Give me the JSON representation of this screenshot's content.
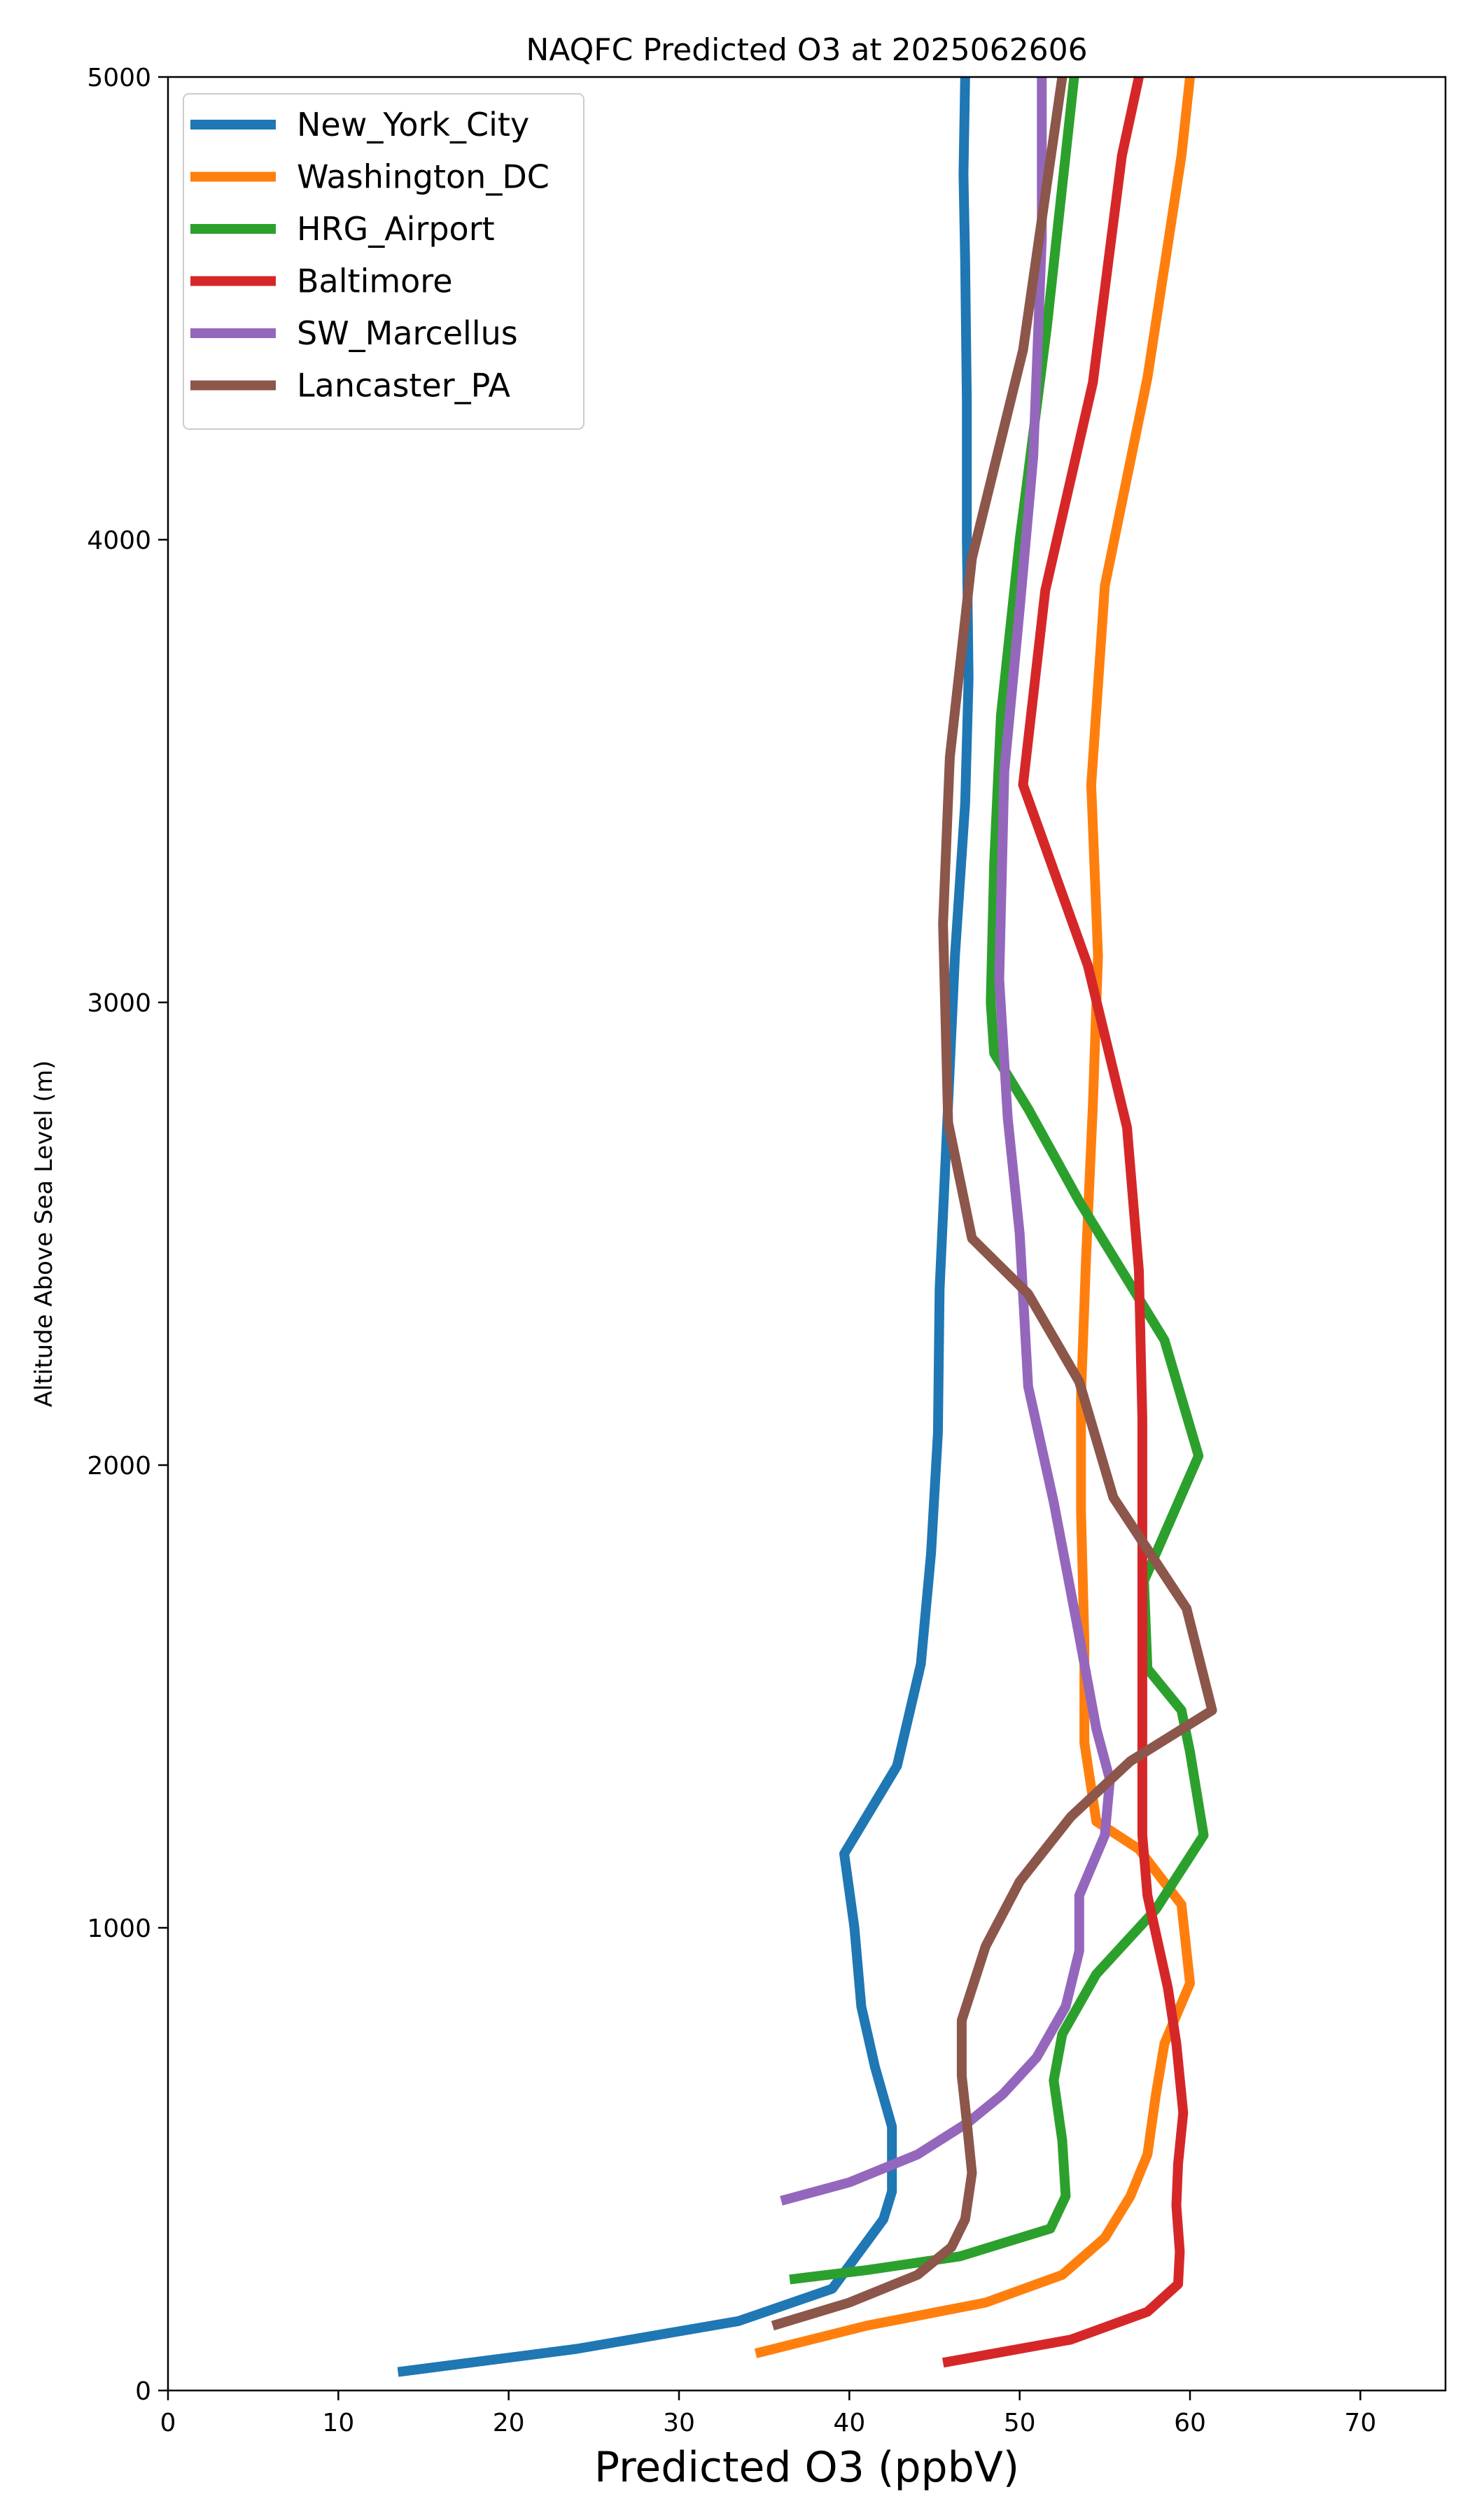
{
  "chart_data": {
    "type": "line",
    "title": "NAQFC Predicted O3 at 2025062606",
    "xlabel": "Predicted O3 (ppbV)",
    "ylabel": "Altitude Above Sea Level (m)",
    "xlim": [
      0,
      75
    ],
    "ylim": [
      0,
      5000
    ],
    "xticks": [
      0,
      10,
      20,
      30,
      40,
      50,
      60,
      70
    ],
    "yticks": [
      0,
      1000,
      2000,
      3000,
      4000,
      5000
    ],
    "grid": false,
    "legend_position": "top-left",
    "series": [
      {
        "name": "New_York_City",
        "color": "#1f77b4",
        "points": [
          [
            13.5,
            40
          ],
          [
            24,
            90
          ],
          [
            33.5,
            150
          ],
          [
            39,
            220
          ],
          [
            42,
            370
          ],
          [
            42.5,
            430
          ],
          [
            42.5,
            570
          ],
          [
            41.5,
            700
          ],
          [
            40.7,
            830
          ],
          [
            40.3,
            1000
          ],
          [
            39.7,
            1160
          ],
          [
            42.8,
            1350
          ],
          [
            44.2,
            1570
          ],
          [
            44.8,
            1810
          ],
          [
            45.2,
            2070
          ],
          [
            45.3,
            2380
          ],
          [
            45.7,
            2700
          ],
          [
            46.2,
            3100
          ],
          [
            46.8,
            3430
          ],
          [
            47.0,
            3700
          ],
          [
            46.9,
            4000
          ],
          [
            46.9,
            4300
          ],
          [
            46.8,
            4600
          ],
          [
            46.7,
            4790
          ],
          [
            46.8,
            5000
          ]
        ]
      },
      {
        "name": "Washington_DC",
        "color": "#ff7f0e",
        "points": [
          [
            34.5,
            80
          ],
          [
            41,
            140
          ],
          [
            48,
            190
          ],
          [
            52.5,
            250
          ],
          [
            55,
            330
          ],
          [
            56.5,
            420
          ],
          [
            57.5,
            510
          ],
          [
            58,
            640
          ],
          [
            58.5,
            750
          ],
          [
            60,
            880
          ],
          [
            59.5,
            1050
          ],
          [
            57,
            1170
          ],
          [
            54.5,
            1230
          ],
          [
            53.8,
            1400
          ],
          [
            53.8,
            1620
          ],
          [
            53.6,
            1900
          ],
          [
            53.6,
            2150
          ],
          [
            53.9,
            2450
          ],
          [
            54.3,
            2780
          ],
          [
            54.6,
            3100
          ],
          [
            54.2,
            3470
          ],
          [
            55,
            3900
          ],
          [
            57.5,
            4350
          ],
          [
            59.5,
            4830
          ],
          [
            60,
            5000
          ]
        ]
      },
      {
        "name": "HRG_Airport",
        "color": "#2ca02c",
        "points": [
          [
            36.5,
            240
          ],
          [
            41,
            260
          ],
          [
            46.5,
            290
          ],
          [
            51.8,
            350
          ],
          [
            52.7,
            420
          ],
          [
            52.5,
            540
          ],
          [
            52,
            670
          ],
          [
            52.5,
            770
          ],
          [
            54.5,
            900
          ],
          [
            58,
            1040
          ],
          [
            60.8,
            1200
          ],
          [
            60,
            1380
          ],
          [
            59.5,
            1470
          ],
          [
            57.5,
            1560
          ],
          [
            57.3,
            1750
          ],
          [
            60.5,
            2020
          ],
          [
            58.5,
            2270
          ],
          [
            53.5,
            2570
          ],
          [
            50.5,
            2770
          ],
          [
            48.5,
            2890
          ],
          [
            48.3,
            3000
          ],
          [
            48.5,
            3300
          ],
          [
            48.9,
            3620
          ],
          [
            50,
            4000
          ],
          [
            51.6,
            4460
          ],
          [
            53.2,
            5000
          ]
        ]
      },
      {
        "name": "Baltimore",
        "color": "#d62728",
        "points": [
          [
            45.5,
            60
          ],
          [
            53,
            110
          ],
          [
            57.5,
            170
          ],
          [
            59.3,
            230
          ],
          [
            59.4,
            300
          ],
          [
            59.2,
            400
          ],
          [
            59.3,
            490
          ],
          [
            59.6,
            600
          ],
          [
            59.2,
            750
          ],
          [
            58.7,
            870
          ],
          [
            57.5,
            1070
          ],
          [
            57.2,
            1200
          ],
          [
            57.2,
            1400
          ],
          [
            57.2,
            1700
          ],
          [
            57.2,
            2100
          ],
          [
            57,
            2420
          ],
          [
            56.3,
            2730
          ],
          [
            54,
            3080
          ],
          [
            50.2,
            3470
          ],
          [
            51.5,
            3890
          ],
          [
            54.3,
            4340
          ],
          [
            56,
            4830
          ],
          [
            57,
            5000
          ]
        ]
      },
      {
        "name": "SW_Marcellus",
        "color": "#9467bd",
        "points": [
          [
            36,
            410
          ],
          [
            40,
            450
          ],
          [
            44,
            510
          ],
          [
            47,
            580
          ],
          [
            49,
            640
          ],
          [
            51,
            720
          ],
          [
            52.7,
            830
          ],
          [
            53.5,
            950
          ],
          [
            53.5,
            1070
          ],
          [
            55,
            1200
          ],
          [
            55.3,
            1320
          ],
          [
            54.5,
            1430
          ],
          [
            53.5,
            1630
          ],
          [
            52,
            1920
          ],
          [
            50.5,
            2170
          ],
          [
            50,
            2500
          ],
          [
            49.3,
            2750
          ],
          [
            48.8,
            3050
          ],
          [
            49.1,
            3500
          ],
          [
            50,
            3850
          ],
          [
            50.8,
            4180
          ],
          [
            51.3,
            4650
          ],
          [
            51.3,
            5000
          ]
        ]
      },
      {
        "name": "Lancaster_PA",
        "color": "#8c564b",
        "points": [
          [
            35.5,
            140
          ],
          [
            40,
            190
          ],
          [
            44,
            250
          ],
          [
            46,
            310
          ],
          [
            46.8,
            370
          ],
          [
            47.2,
            470
          ],
          [
            46.9,
            580
          ],
          [
            46.6,
            680
          ],
          [
            46.6,
            800
          ],
          [
            48,
            960
          ],
          [
            50,
            1100
          ],
          [
            53,
            1240
          ],
          [
            56.5,
            1360
          ],
          [
            61.3,
            1470
          ],
          [
            59.8,
            1690
          ],
          [
            55.5,
            1930
          ],
          [
            53.5,
            2180
          ],
          [
            50.5,
            2370
          ],
          [
            47.2,
            2490
          ],
          [
            45.8,
            2740
          ],
          [
            45.5,
            3170
          ],
          [
            45.9,
            3530
          ],
          [
            47.2,
            3960
          ],
          [
            50.2,
            4410
          ],
          [
            52.5,
            5000
          ]
        ]
      }
    ]
  }
}
